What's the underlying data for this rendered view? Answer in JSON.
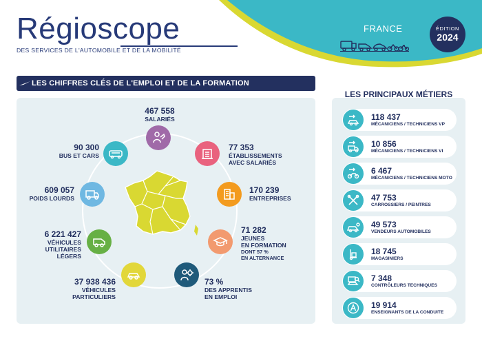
{
  "header": {
    "logo_text": "Régioscope",
    "subtitle": "DES SERVICES DE L'AUTOMOBILE ET DE LA MOBILITÉ",
    "region": "FRANCE",
    "edition_label": "ÉDITION",
    "edition_year": "2024",
    "vehicle_icons": [
      "truck-icon",
      "van-icon",
      "car-icon",
      "motorcycle-icon",
      "bicycle-icon"
    ]
  },
  "colors": {
    "navy": "#23305f",
    "teal": "#3bb8c6",
    "yellow": "#d9d832",
    "panel": "#e7f0f3"
  },
  "key_figures": {
    "title": "LES CHIFFRES CLÉS DE L'EMPLOI ET DE LA FORMATION",
    "salaries": {
      "value": "467 558",
      "label": "SALARIÉS",
      "icon": "employee-icon",
      "color": "#a06aa8"
    },
    "etablissements": {
      "value": "77 353",
      "label1": "ÉTABLISSEMENTS",
      "label2": "AVEC SALARIÉS",
      "icon": "building-icon",
      "color": "#e9627e"
    },
    "entreprises": {
      "value": "170 239",
      "label": "ENTREPRISES",
      "icon": "office-icon",
      "color": "#f39b1f"
    },
    "jeunes": {
      "value": "71 282",
      "label1": "JEUNES",
      "label2": "EN FORMATION",
      "note1": "DONT 57 %",
      "note2": "EN ALTERNANCE",
      "icon": "graduation-cap-icon",
      "color": "#f29a6f"
    },
    "apprentis": {
      "value": "73 %",
      "label1": "DES APPRENTIS",
      "label2": "EN EMPLOI",
      "icon": "apprentice-icon",
      "color": "#1f5a7a"
    },
    "vp": {
      "value": "37 938 436",
      "label1": "VÉHICULES",
      "label2": "PARTICULIERS",
      "icon": "car-icon",
      "color": "#e2d73a"
    },
    "vul": {
      "value": "6 221 427",
      "label1": "VÉHICULES",
      "label2": "UTILITAIRES",
      "label3": "LÉGERS",
      "icon": "van-icon",
      "color": "#67b045"
    },
    "poids_lourds": {
      "value": "609 057",
      "label": "POIDS LOURDS",
      "icon": "truck-icon",
      "color": "#6fb8e2"
    },
    "bus": {
      "value": "90 300",
      "label": "BUS ET CARS",
      "icon": "bus-icon",
      "color": "#3bb8c6"
    }
  },
  "jobs": {
    "title": "LES PRINCIPAUX MÉTIERS",
    "items": [
      {
        "value": "118 437",
        "label": "MÉCANICIENS / TECHNICIENS VP",
        "icon": "car-wrench-icon"
      },
      {
        "value": "10 856",
        "label": "MÉCANICIENS / TECHNICIENS VI",
        "icon": "truck-wrench-icon"
      },
      {
        "value": "6 467",
        "label": "MÉCANICIENS / TECHNICIENS MOTO",
        "icon": "moto-wrench-icon"
      },
      {
        "value": "47 753",
        "label": "CARROSSIERS / PEINTRES",
        "icon": "tools-icon"
      },
      {
        "value": "49 573",
        "label": "VENDEURS AUTOMOBILES",
        "icon": "car-sale-icon"
      },
      {
        "value": "18 745",
        "label": "MAGASINIERS",
        "icon": "hand-truck-icon"
      },
      {
        "value": "7 348",
        "label": "CONTRÔLEURS TECHNIQUES",
        "icon": "inspection-icon"
      },
      {
        "value": "19 914",
        "label": "ENSEIGNANTS DE LA CONDUITE",
        "icon": "learner-a-icon"
      }
    ]
  }
}
